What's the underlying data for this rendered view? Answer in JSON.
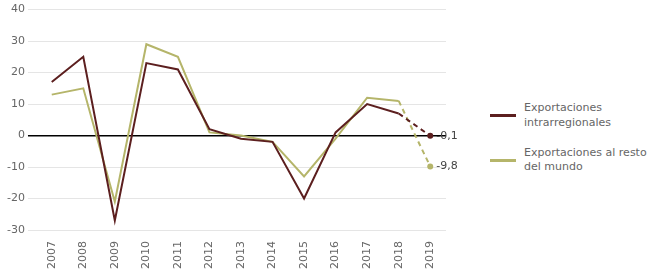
{
  "chart_data": {
    "type": "line",
    "categories": [
      "2007",
      "2008",
      "2009",
      "2010",
      "2011",
      "2012",
      "2013",
      "2014",
      "2015",
      "2016",
      "2017",
      "2018",
      "2019"
    ],
    "series": [
      {
        "name": "Exportaciones\nintrarregionales",
        "color": "#5c1f1f",
        "line_style": "solid",
        "values": [
          17,
          25,
          -27,
          23,
          21,
          2,
          -1,
          -2,
          -20,
          1,
          10,
          7,
          null
        ]
      },
      {
        "name": "Exportaciones al resto\ndel mundo",
        "color": "#b5b56a",
        "line_style": "solid",
        "values": [
          13,
          15,
          -21,
          29,
          25,
          1,
          0,
          -2,
          -13,
          -1,
          12,
          11,
          null
        ]
      },
      {
        "color": "#5c1f1f",
        "line_style": "dashed",
        "marker": "o",
        "values": [
          null,
          null,
          null,
          null,
          null,
          null,
          null,
          null,
          null,
          null,
          null,
          7,
          -0.1
        ]
      },
      {
        "color": "#b5b56a",
        "line_style": "dashed",
        "marker": "o",
        "values": [
          null,
          null,
          null,
          null,
          null,
          null,
          null,
          null,
          null,
          null,
          null,
          11,
          -9.8
        ]
      }
    ],
    "annotations": [
      {
        "text": "-0,1",
        "x": "2019",
        "y": -0.1
      },
      {
        "text": "-9,8",
        "x": "2019",
        "y": -9.8
      }
    ],
    "ylim": [
      -30,
      40
    ],
    "yticks": [
      -30,
      -20,
      -10,
      0,
      10,
      20,
      30,
      40
    ],
    "grid": true,
    "legend": "right"
  }
}
